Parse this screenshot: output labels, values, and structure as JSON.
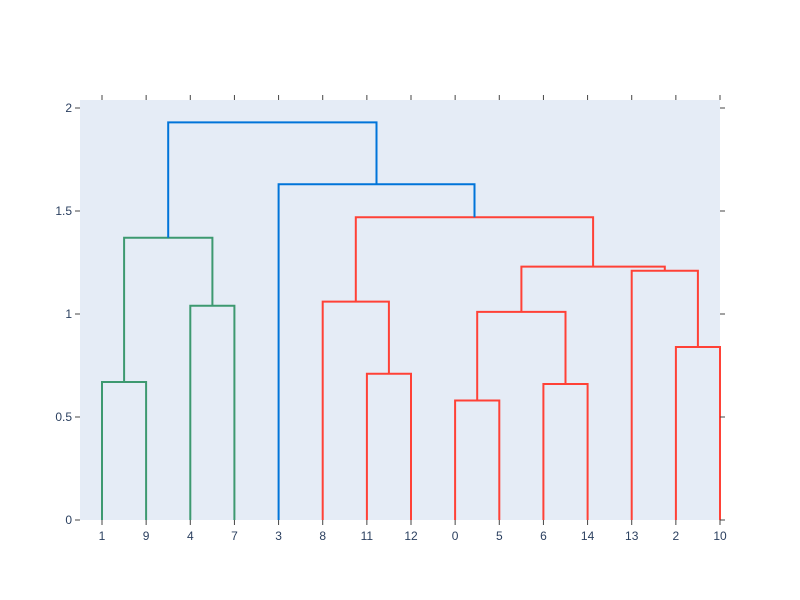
{
  "chart_data": {
    "type": "dendrogram",
    "title": "",
    "xlabel": "",
    "ylabel": "",
    "ylim": [
      0,
      2
    ],
    "grid": false,
    "legend": "none",
    "plot_background": "#e5ecf6",
    "y_ticks": [
      {
        "value": 0,
        "label": "0"
      },
      {
        "value": 0.5,
        "label": "0.5"
      },
      {
        "value": 1,
        "label": "1"
      },
      {
        "value": 1.5,
        "label": "1.5"
      },
      {
        "value": 2,
        "label": "2"
      }
    ],
    "leaf_order": [
      "1",
      "9",
      "4",
      "7",
      "3",
      "8",
      "11",
      "12",
      "0",
      "5",
      "6",
      "14",
      "13",
      "2",
      "10"
    ],
    "colors": {
      "green": "#3d9970",
      "red": "#ff4136",
      "blue": "#0074d9"
    },
    "links": [
      {
        "color": "green",
        "x": [
          0,
          0,
          1,
          1
        ],
        "y": [
          0,
          0.67,
          0.67,
          0
        ]
      },
      {
        "color": "green",
        "x": [
          2,
          2,
          3,
          3
        ],
        "y": [
          0,
          1.04,
          1.04,
          0
        ]
      },
      {
        "color": "green",
        "x": [
          0.5,
          0.5,
          2.5,
          2.5
        ],
        "y": [
          0.67,
          1.37,
          1.37,
          1.04
        ]
      },
      {
        "color": "red",
        "x": [
          6,
          6,
          7,
          7
        ],
        "y": [
          0,
          0.71,
          0.71,
          0
        ]
      },
      {
        "color": "red",
        "x": [
          5,
          5,
          6.5,
          6.5
        ],
        "y": [
          0,
          1.06,
          1.06,
          0.71
        ]
      },
      {
        "color": "red",
        "x": [
          8,
          8,
          9,
          9
        ],
        "y": [
          0,
          0.58,
          0.58,
          0
        ]
      },
      {
        "color": "red",
        "x": [
          10,
          10,
          11,
          11
        ],
        "y": [
          0,
          0.66,
          0.66,
          0
        ]
      },
      {
        "color": "red",
        "x": [
          8.5,
          8.5,
          10.5,
          10.5
        ],
        "y": [
          0.58,
          1.01,
          1.01,
          0.66
        ]
      },
      {
        "color": "red",
        "x": [
          13,
          13,
          14,
          14
        ],
        "y": [
          0,
          0.84,
          0.84,
          0
        ]
      },
      {
        "color": "red",
        "x": [
          12,
          12,
          13.5,
          13.5
        ],
        "y": [
          0,
          1.21,
          1.21,
          0.84
        ]
      },
      {
        "color": "red",
        "x": [
          9.5,
          9.5,
          12.75,
          12.75
        ],
        "y": [
          1.01,
          1.23,
          1.23,
          1.21
        ]
      },
      {
        "color": "red",
        "x": [
          5.75,
          5.75,
          11.125,
          11.125
        ],
        "y": [
          1.06,
          1.47,
          1.47,
          1.23
        ]
      },
      {
        "color": "blue",
        "x": [
          4,
          4,
          8.4375,
          8.4375
        ],
        "y": [
          0,
          1.63,
          1.63,
          1.47
        ]
      },
      {
        "color": "blue",
        "x": [
          1.5,
          1.5,
          6.21875,
          6.21875
        ],
        "y": [
          1.37,
          1.93,
          1.93,
          1.63
        ]
      }
    ]
  }
}
